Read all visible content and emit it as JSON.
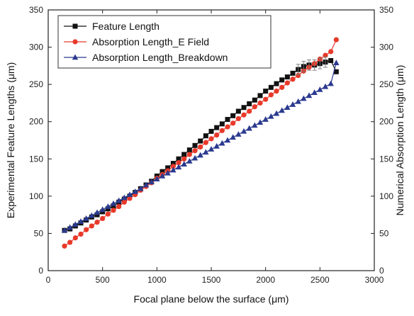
{
  "chart_data": {
    "type": "line",
    "xlabel": "Focal plane below the surface (μm)",
    "ylabel_left": "Experimental Feature Lengths (μm)",
    "ylabel_right": "Numerical Absorption Length (μm)",
    "xlim": [
      0,
      3000
    ],
    "ylim": [
      0,
      350
    ],
    "xticks": [
      0,
      500,
      1000,
      1500,
      2000,
      2500,
      3000
    ],
    "yticks": [
      0,
      50,
      100,
      150,
      200,
      250,
      300,
      350
    ],
    "grid": false,
    "legend_position": "top-left",
    "series": [
      {
        "name": "Feature Length",
        "color": "#111111",
        "marker": "square",
        "axis": "left",
        "x": [
          150,
          200,
          250,
          300,
          350,
          400,
          450,
          500,
          550,
          600,
          650,
          700,
          750,
          800,
          850,
          900,
          950,
          1000,
          1050,
          1100,
          1150,
          1200,
          1250,
          1300,
          1350,
          1400,
          1450,
          1500,
          1550,
          1600,
          1650,
          1700,
          1750,
          1800,
          1850,
          1900,
          1950,
          2000,
          2050,
          2100,
          2150,
          2200,
          2250,
          2300,
          2350,
          2400,
          2450,
          2500,
          2550,
          2600,
          2650
        ],
        "y": [
          54,
          56,
          60,
          64,
          68,
          72,
          75,
          79,
          83,
          87,
          92,
          96,
          100,
          105,
          110,
          115,
          120,
          127,
          133,
          138,
          144,
          150,
          156,
          162,
          168,
          174,
          181,
          187,
          192,
          197,
          203,
          208,
          214,
          219,
          224,
          229,
          235,
          241,
          246,
          251,
          256,
          260,
          265,
          270,
          274,
          276,
          276,
          278,
          280,
          282,
          267
        ]
      },
      {
        "name": "Absorption Length_E Field",
        "color": "#e8392a",
        "marker": "circle",
        "axis": "right",
        "x": [
          150,
          200,
          250,
          300,
          350,
          400,
          450,
          500,
          550,
          600,
          650,
          700,
          750,
          800,
          850,
          900,
          950,
          1000,
          1050,
          1100,
          1150,
          1200,
          1250,
          1300,
          1350,
          1400,
          1450,
          1500,
          1550,
          1600,
          1650,
          1700,
          1750,
          1800,
          1850,
          1900,
          1950,
          2000,
          2050,
          2100,
          2150,
          2200,
          2250,
          2300,
          2350,
          2400,
          2450,
          2500,
          2550,
          2600,
          2650
        ],
        "y": [
          33,
          38,
          44,
          49,
          55,
          60,
          65,
          70,
          76,
          81,
          86,
          92,
          97,
          102,
          108,
          113,
          118,
          124,
          129,
          134,
          140,
          145,
          150,
          156,
          161,
          166,
          172,
          177,
          182,
          188,
          193,
          198,
          204,
          209,
          214,
          220,
          225,
          230,
          236,
          241,
          246,
          252,
          257,
          262,
          268,
          273,
          278,
          284,
          289,
          294,
          310
        ]
      },
      {
        "name": "Absorption Length_Breakdown",
        "color": "#2b3a8f",
        "marker": "triangle",
        "axis": "right",
        "x": [
          150,
          200,
          250,
          300,
          350,
          400,
          450,
          500,
          550,
          600,
          650,
          700,
          750,
          800,
          850,
          900,
          950,
          1000,
          1050,
          1100,
          1150,
          1200,
          1250,
          1300,
          1350,
          1400,
          1450,
          1500,
          1550,
          1600,
          1650,
          1700,
          1750,
          1800,
          1850,
          1900,
          1950,
          2000,
          2050,
          2100,
          2150,
          2200,
          2250,
          2300,
          2350,
          2400,
          2450,
          2500,
          2550,
          2600,
          2650
        ],
        "y": [
          54,
          58,
          62,
          66,
          70,
          74,
          78,
          82,
          86,
          90,
          94,
          98,
          102,
          106,
          110,
          115,
          119,
          123,
          127,
          131,
          135,
          139,
          143,
          147,
          151,
          155,
          159,
          163,
          167,
          171,
          175,
          179,
          183,
          187,
          191,
          195,
          199,
          203,
          207,
          211,
          215,
          219,
          223,
          227,
          231,
          235,
          239,
          243,
          247,
          251,
          279
        ]
      }
    ]
  }
}
